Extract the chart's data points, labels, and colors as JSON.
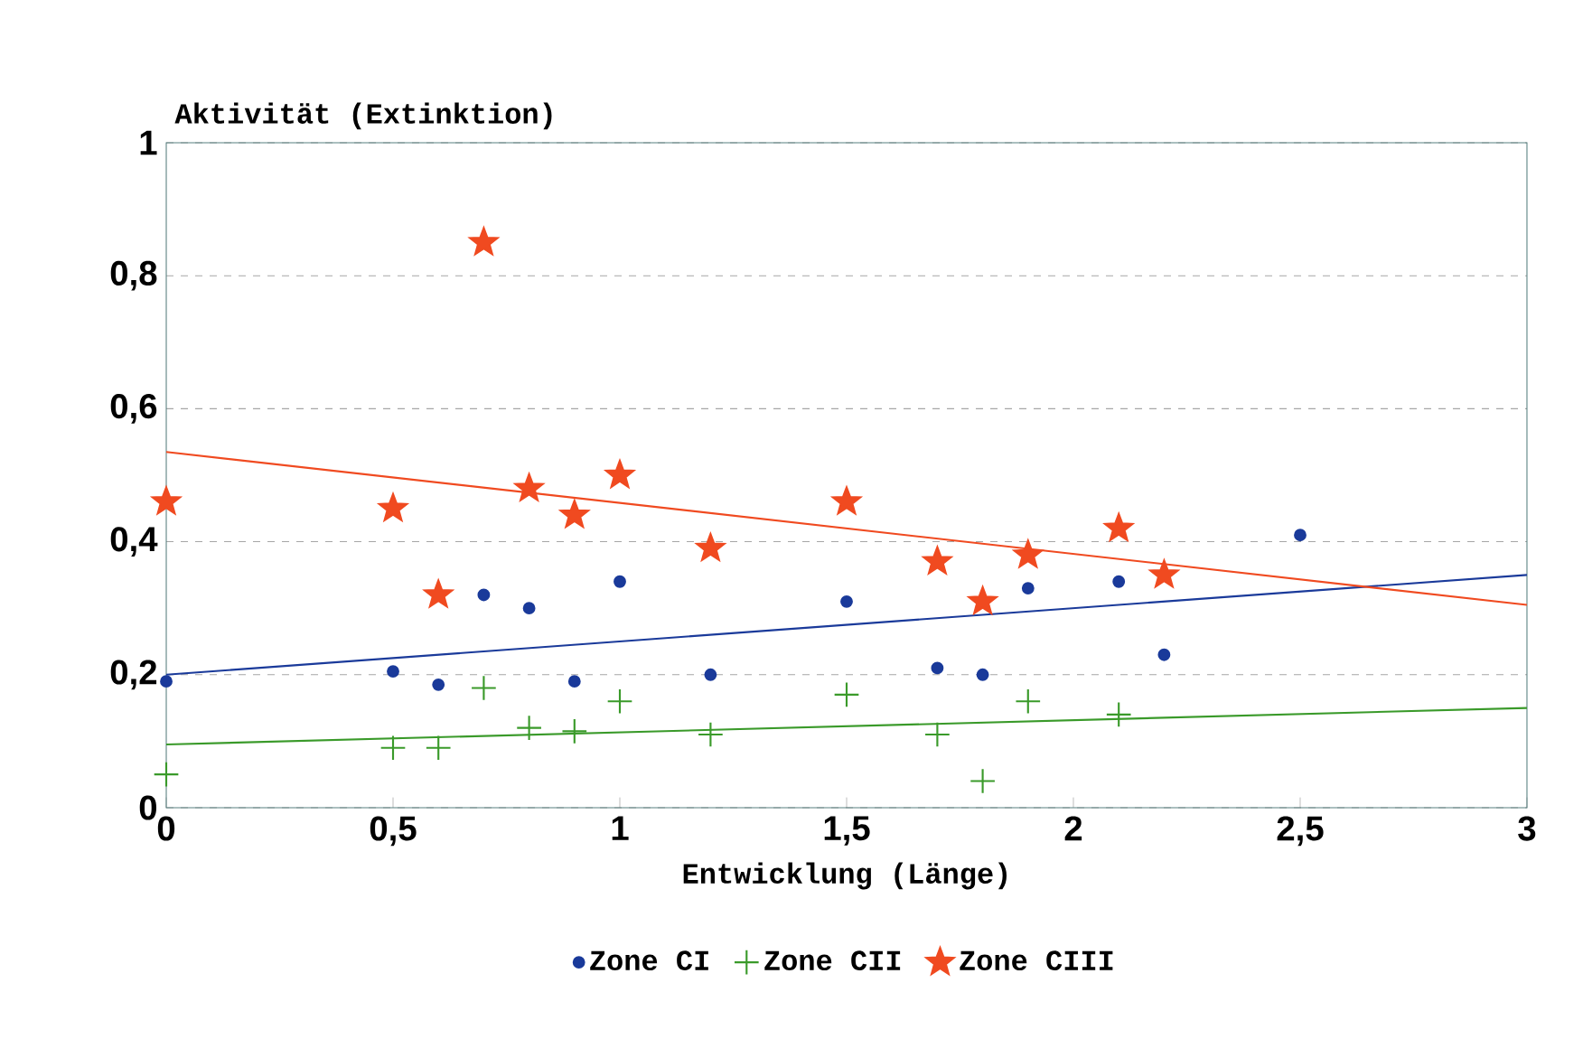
{
  "chart_data": {
    "type": "scatter",
    "xlabel": "Entwicklung (Länge)",
    "ylabel": "Aktivität (Extinktion)",
    "xlim": [
      0,
      3
    ],
    "xticks": [
      0,
      {
        "value": 0.5,
        "label": "0,5"
      },
      1,
      {
        "value": 1.5,
        "label": "1,5"
      },
      2,
      {
        "value": 2.5,
        "label": "2,5"
      },
      3
    ],
    "ylim": [
      0,
      1
    ],
    "yticks": [
      0,
      {
        "value": 0.2,
        "label": "0,2"
      },
      {
        "value": 0.4,
        "label": "0,4"
      },
      {
        "value": 0.6,
        "label": "0,6"
      },
      {
        "value": 0.8,
        "label": "0,8"
      },
      1
    ],
    "grid": "y",
    "legend": "bottom",
    "series": [
      {
        "name": "Zone CI",
        "marker": "circle",
        "color": "#1a3a9a",
        "x": [
          0,
          0.5,
          0.6,
          0.7,
          0.8,
          0.9,
          1.0,
          1.2,
          1.5,
          1.7,
          1.8,
          1.9,
          2.1,
          2.2,
          2.5
        ],
        "values": [
          0.19,
          0.205,
          0.185,
          0.32,
          0.3,
          0.19,
          0.34,
          0.2,
          0.31,
          0.21,
          0.2,
          0.33,
          0.34,
          0.23,
          0.41
        ]
      },
      {
        "name": "Zone CII",
        "marker": "cross",
        "color": "#3a9a2a",
        "x": [
          0,
          0.5,
          0.6,
          0.7,
          0.8,
          0.9,
          1.0,
          1.2,
          1.5,
          1.7,
          1.8,
          1.9,
          2.1
        ],
        "values": [
          0.05,
          0.09,
          0.09,
          0.18,
          0.12,
          0.115,
          0.16,
          0.11,
          0.17,
          0.11,
          0.04,
          0.16,
          0.14
        ]
      },
      {
        "name": "Zone CIII",
        "marker": "star",
        "color": "#f04a20",
        "x": [
          0,
          0.5,
          0.6,
          0.7,
          0.8,
          0.9,
          1.0,
          1.2,
          1.5,
          1.7,
          1.8,
          1.9,
          2.1,
          2.2
        ],
        "values": [
          0.46,
          0.45,
          0.32,
          0.85,
          0.48,
          0.44,
          0.5,
          0.39,
          0.46,
          0.37,
          0.31,
          0.38,
          0.42,
          0.35
        ]
      },
      {
        "type": "line",
        "marker": "none",
        "line_style": "solid",
        "color": "#1a3a9a",
        "x": [
          0,
          3
        ],
        "values": [
          0.2,
          0.35
        ]
      },
      {
        "type": "line",
        "marker": "none",
        "line_style": "solid",
        "color": "#3a9a2a",
        "x": [
          0,
          3
        ],
        "values": [
          0.095,
          0.15
        ]
      },
      {
        "type": "line",
        "marker": "none",
        "line_style": "solid",
        "color": "#f04a20",
        "x": [
          0,
          3
        ],
        "values": [
          0.535,
          0.305
        ]
      }
    ]
  }
}
